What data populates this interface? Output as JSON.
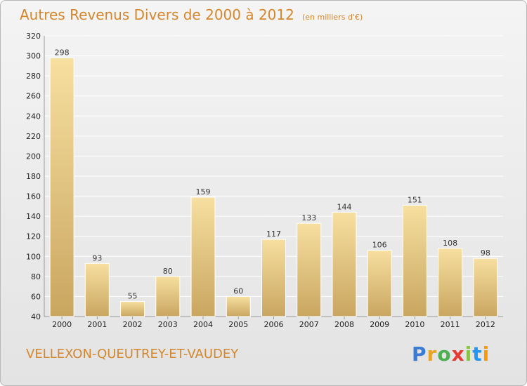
{
  "title": "Autres Revenus Divers de 2000 à 2012",
  "unit": "(en milliers d'€)",
  "commune": "VELLEXON-QUEUTREY-ET-VAUDEY",
  "logo": {
    "letters": [
      "P",
      "r",
      "o",
      "x",
      "i",
      "t",
      "i"
    ],
    "colors": [
      "#3a7bd5",
      "#e8a42a",
      "#4caf50",
      "#e53935",
      "#8bc34a",
      "#2196f3",
      "#ff9800"
    ]
  },
  "colors": {
    "title": "#d4872c",
    "bar_light": "#f7dfa0",
    "bar_dark": "#c9a660",
    "grid": "#ffffff"
  },
  "chart_data": {
    "type": "bar",
    "title": "Autres Revenus Divers de 2000 à 2012",
    "categories": [
      "2000",
      "2001",
      "2002",
      "2003",
      "2004",
      "2005",
      "2006",
      "2007",
      "2008",
      "2009",
      "2010",
      "2011",
      "2012"
    ],
    "values": [
      298,
      93,
      55,
      80,
      159,
      60,
      117,
      133,
      144,
      106,
      151,
      108,
      98
    ],
    "ylim": [
      40,
      320
    ],
    "yticks": [
      40,
      60,
      80,
      100,
      120,
      140,
      160,
      180,
      200,
      220,
      240,
      260,
      280,
      300,
      320
    ],
    "grid": true,
    "xlabel": "",
    "ylabel": ""
  }
}
